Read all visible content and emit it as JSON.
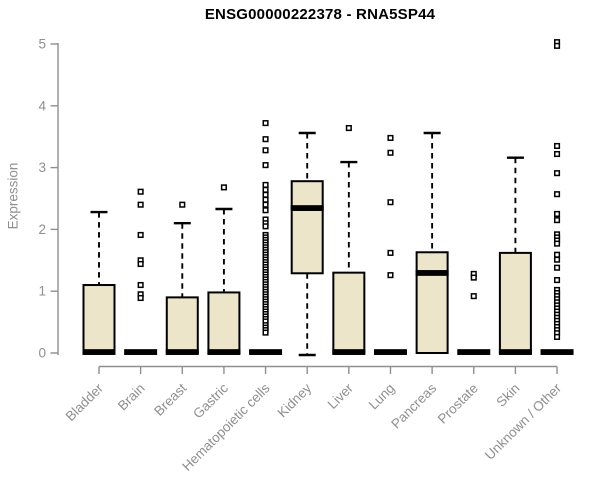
{
  "chart_data": {
    "type": "boxplot",
    "title": "ENSG00000222378 - RNA5SP44",
    "subtitle": "",
    "xlabel": "",
    "ylabel": "Expression",
    "ylim": [
      0,
      5
    ],
    "yticks": [
      0,
      1,
      2,
      3,
      4,
      5
    ],
    "grid": "off",
    "legend": "none",
    "categories": [
      "Bladder",
      "Brain",
      "Breast",
      "Gastric",
      "Hematopoietic cells",
      "Kidney",
      "Liver",
      "Lung",
      "Pancreas",
      "Prostate",
      "Skin",
      "Unknown / Other"
    ],
    "series": [
      {
        "category": "Bladder",
        "q1": 0,
        "median": 0.02,
        "q3": 1.1,
        "whisker_low": 0,
        "whisker_high": 2.28,
        "outliers": []
      },
      {
        "category": "Brain",
        "q1": 0,
        "median": 0.02,
        "q3": 0,
        "whisker_low": 0,
        "whisker_high": 0,
        "outliers": [
          2.61,
          2.4,
          1.91,
          1.5,
          1.44,
          1.1,
          0.95,
          0.89
        ]
      },
      {
        "category": "Breast",
        "q1": 0,
        "median": 0.02,
        "q3": 0.9,
        "whisker_low": 0,
        "whisker_high": 2.1,
        "outliers": [
          2.4
        ]
      },
      {
        "category": "Gastric",
        "q1": 0,
        "median": 0.02,
        "q3": 0.98,
        "whisker_low": 0,
        "whisker_high": 2.33,
        "outliers": [
          2.68
        ]
      },
      {
        "category": "Hematopoietic cells",
        "q1": 0,
        "median": 0.02,
        "q3": 0,
        "whisker_low": 0,
        "whisker_high": 0,
        "outliers": [
          3.72,
          3.46,
          3.28,
          3.04,
          2.72,
          2.64,
          2.56,
          2.48,
          2.4,
          2.31,
          2.16,
          2.1,
          2.05,
          1.91,
          1.87,
          1.83,
          1.79,
          1.75,
          1.71,
          1.67,
          1.63,
          1.59,
          1.55,
          1.51,
          1.47,
          1.43,
          1.39,
          1.35,
          1.31,
          1.27,
          1.23,
          1.19,
          1.15,
          1.11,
          1.07,
          1.03,
          0.99,
          0.95,
          0.91,
          0.87,
          0.83,
          0.79,
          0.75,
          0.71,
          0.67,
          0.63,
          0.59,
          0.55,
          0.51,
          0.45,
          0.41,
          0.37,
          0.33
        ]
      },
      {
        "category": "Kidney",
        "q1": 1.29,
        "median": 2.35,
        "q3": 2.78,
        "whisker_low": 0.0,
        "whisker_high": 3.56,
        "outliers": []
      },
      {
        "category": "Liver",
        "q1": 0,
        "median": 0.02,
        "q3": 1.3,
        "whisker_low": 0,
        "whisker_high": 3.09,
        "outliers": [
          3.64
        ]
      },
      {
        "category": "Lung",
        "q1": 0,
        "median": 0.02,
        "q3": 0,
        "whisker_low": 0,
        "whisker_high": 0,
        "outliers": [
          3.48,
          3.24,
          2.44,
          1.62,
          1.26
        ]
      },
      {
        "category": "Pancreas",
        "q1": 0,
        "median": 1.3,
        "q3": 1.63,
        "whisker_low": 0,
        "whisker_high": 3.56,
        "outliers": []
      },
      {
        "category": "Prostate",
        "q1": 0,
        "median": 0.02,
        "q3": 0,
        "whisker_low": 0,
        "whisker_high": 0,
        "outliers": [
          1.28,
          1.22,
          0.92
        ]
      },
      {
        "category": "Skin",
        "q1": 0,
        "median": 0.02,
        "q3": 1.62,
        "whisker_low": 0,
        "whisker_high": 3.16,
        "outliers": []
      },
      {
        "category": "Unknown / Other",
        "q1": 0,
        "median": 0.02,
        "q3": 0,
        "whisker_low": 0,
        "whisker_high": 0,
        "outliers": [
          5.03,
          4.97,
          3.35,
          3.22,
          2.91,
          2.57,
          2.25,
          2.15,
          1.92,
          1.87,
          1.82,
          1.77,
          1.59,
          1.51,
          1.38,
          1.18,
          1.02,
          0.97,
          0.92,
          0.87,
          0.82,
          0.77,
          0.72,
          0.67,
          0.62,
          0.57,
          0.52,
          0.47,
          0.42,
          0.37,
          0.32,
          0.26
        ]
      }
    ],
    "colors": {
      "box_fill": "#ede5c9",
      "box_border": "#000000",
      "median": "#000000",
      "whisker": "#000000",
      "outlier_stroke": "#000000",
      "outlier_fill": "#ffffff",
      "axis": "#8f8f8f",
      "tick_label": "#8f8f8f",
      "title_text": "#000000",
      "background": "#ffffff"
    }
  }
}
